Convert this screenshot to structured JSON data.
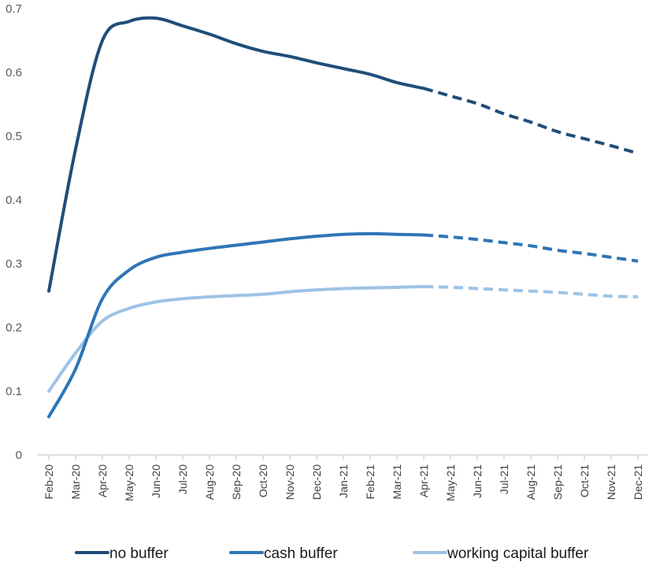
{
  "chart_data": {
    "type": "line",
    "title": "",
    "xlabel": "",
    "ylabel": "",
    "ylim": [
      0,
      0.7
    ],
    "yticks": [
      0,
      0.1,
      0.2,
      0.3,
      0.4,
      0.5,
      0.6,
      0.7
    ],
    "ytick_labels": [
      "0",
      "0.1",
      "0.2",
      "0.3",
      "0.4",
      "0.5",
      "0.6",
      "0.7"
    ],
    "categories": [
      "Feb-20",
      "Mar-20",
      "Apr-20",
      "May-20",
      "Jun-20",
      "Jul-20",
      "Aug-20",
      "Sep-20",
      "Oct-20",
      "Nov-20",
      "Dec-20",
      "Jan-21",
      "Feb-21",
      "Mar-21",
      "Apr-21",
      "May-21",
      "Jun-21",
      "Jul-21",
      "Aug-21",
      "Sep-21",
      "Oct-21",
      "Nov-21",
      "Dec-21"
    ],
    "forecast_start": "Apr-21",
    "grid": false,
    "legend_position": "bottom",
    "series": [
      {
        "name": "no buffer",
        "color": "#1f4e79",
        "values": [
          0.257,
          0.48,
          0.65,
          0.68,
          0.685,
          0.673,
          0.66,
          0.645,
          0.633,
          0.625,
          0.615,
          0.606,
          0.597,
          0.584,
          0.575,
          0.563,
          0.551,
          0.535,
          0.522,
          0.507,
          0.496,
          0.485,
          0.473
        ]
      },
      {
        "name": "cash buffer",
        "color": "#2e75b6",
        "values": [
          0.06,
          0.135,
          0.245,
          0.29,
          0.31,
          0.318,
          0.324,
          0.329,
          0.334,
          0.339,
          0.343,
          0.346,
          0.347,
          0.346,
          0.345,
          0.342,
          0.338,
          0.333,
          0.328,
          0.321,
          0.316,
          0.31,
          0.304
        ]
      },
      {
        "name": "working capital buffer",
        "color": "#9dc3e6",
        "values": [
          0.1,
          0.16,
          0.21,
          0.23,
          0.24,
          0.245,
          0.248,
          0.25,
          0.252,
          0.256,
          0.259,
          0.261,
          0.262,
          0.263,
          0.264,
          0.263,
          0.261,
          0.259,
          0.257,
          0.255,
          0.252,
          0.249,
          0.248
        ]
      }
    ]
  }
}
